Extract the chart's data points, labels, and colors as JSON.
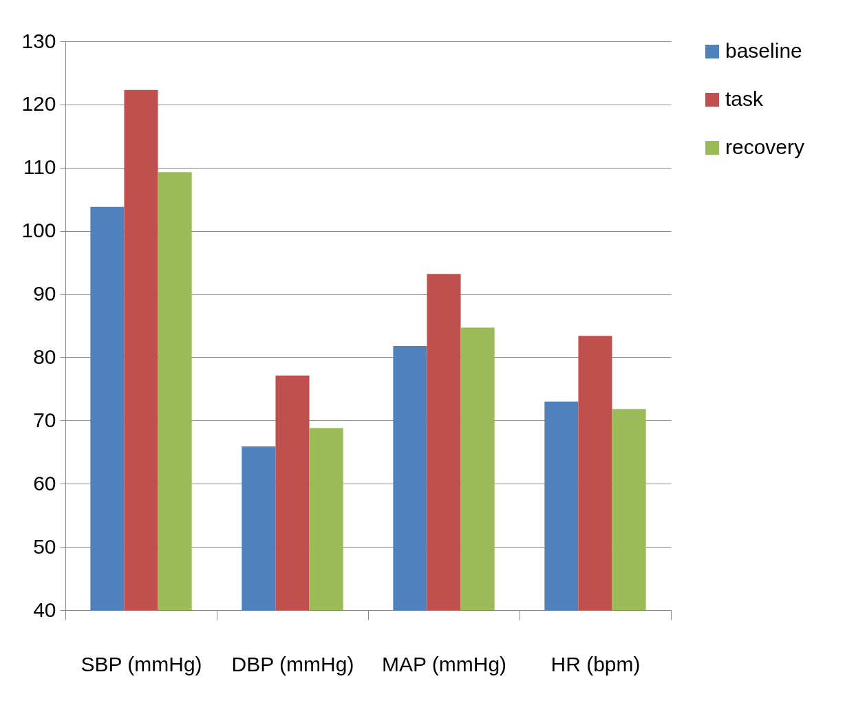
{
  "chart_data": {
    "type": "bar",
    "categories": [
      "SBP (mmHg)",
      "DBP (mmHg)",
      "MAP (mmHg)",
      "HR (bpm)"
    ],
    "series": [
      {
        "name": "baseline",
        "color": "#4f81bd",
        "values": [
          103.8,
          65.9,
          81.8,
          73.0
        ]
      },
      {
        "name": "task",
        "color": "#c0504d",
        "values": [
          122.3,
          77.1,
          93.2,
          83.4
        ]
      },
      {
        "name": "recovery",
        "color": "#9bbb59",
        "values": [
          109.3,
          68.8,
          84.7,
          71.8
        ]
      }
    ],
    "ylim": [
      40,
      130
    ],
    "yticks": [
      40,
      50,
      60,
      70,
      80,
      90,
      100,
      110,
      120,
      130
    ],
    "grid": "y",
    "legend": "right"
  }
}
